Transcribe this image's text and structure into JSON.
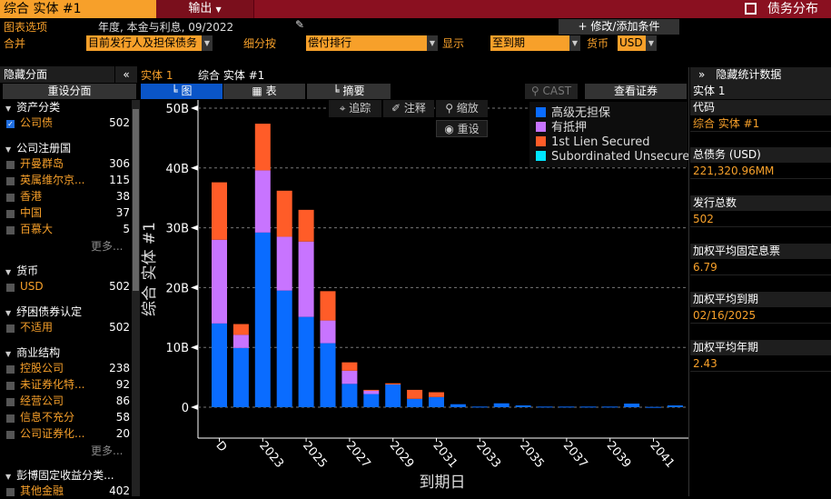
{
  "header": {
    "title": "综合 实体 #1",
    "export_label": "输出",
    "app_title": "债务分布"
  },
  "options": {
    "chart_options_label": "图表选项",
    "chart_options_value": "年度, 本金与利息, 09/2022",
    "modify_label": "+ 修改/添加条件",
    "merge_label": "合并",
    "merge_value": "目前发行人及担保债务",
    "breakdown_label": "细分按",
    "breakdown_value": "偿付排行",
    "display_label": "显示",
    "display_value": "至到期",
    "currency_label": "货币",
    "currency_value": "USD"
  },
  "left_panel": {
    "hide_label": "隐藏分面",
    "collapse": "«",
    "reset_label": "重设分面",
    "more_label": "更多...",
    "groups": [
      {
        "title": "资产分类",
        "items": [
          {
            "name": "公司债",
            "count": "502",
            "checked": true
          }
        ]
      },
      {
        "title": "公司注册国",
        "items": [
          {
            "name": "开曼群岛",
            "count": "306"
          },
          {
            "name": "英属维尔京...",
            "count": "115"
          },
          {
            "name": "香港",
            "count": "38"
          },
          {
            "name": "中国",
            "count": "37"
          },
          {
            "name": "百慕大",
            "count": "5"
          }
        ],
        "more": true
      },
      {
        "title": "货币",
        "items": [
          {
            "name": "USD",
            "count": "502"
          }
        ]
      },
      {
        "title": "纾困债券认定",
        "items": [
          {
            "name": "不适用",
            "count": "502"
          }
        ]
      },
      {
        "title": "商业结构",
        "items": [
          {
            "name": "控股公司",
            "count": "238"
          },
          {
            "name": "未证券化特...",
            "count": "92"
          },
          {
            "name": "经营公司",
            "count": "86"
          },
          {
            "name": "信息不充分",
            "count": "58"
          },
          {
            "name": "公司证券化...",
            "count": "20"
          }
        ],
        "more": true
      },
      {
        "title": "彭博固定收益分类...",
        "items": [
          {
            "name": "其他金融",
            "count": "402"
          }
        ]
      }
    ]
  },
  "center": {
    "entity_tab": "实体 1",
    "entity_name": "综合 实体 #1",
    "tabs": [
      "图",
      "表",
      "摘要"
    ],
    "cast_label": "CAST",
    "view_securities": "查看证券",
    "tools": {
      "track": "追踪",
      "annotate": "注释",
      "zoom": "缩放",
      "reset": "重设"
    }
  },
  "chart_data": {
    "type": "bar",
    "stacked": true,
    "categories": [
      "D",
      "2022",
      "2023",
      "2024",
      "2025",
      "2026",
      "2027",
      "2028",
      "2029",
      "2030",
      "2031",
      "2032",
      "2033",
      "2034",
      "2035",
      "2036",
      "2037",
      "2038",
      "2039",
      "2040",
      "2041",
      "2042"
    ],
    "tick_labels": [
      "D",
      "2023",
      "2025",
      "2027",
      "2029",
      "2031",
      "2033",
      "2035",
      "2037",
      "2039",
      "2041"
    ],
    "y_ticks": [
      "0",
      "10B",
      "20B",
      "30B",
      "40B",
      "50B"
    ],
    "ylim": [
      -5,
      50
    ],
    "ylabel": "综合 实体 #1",
    "xlabel": "到期日",
    "grid": true,
    "legend": "top-right",
    "series": [
      {
        "name": "高级无担保",
        "color": "#0a6cff",
        "values": [
          14.0,
          9.9,
          29.2,
          19.5,
          15.1,
          10.7,
          3.9,
          2.2,
          3.8,
          1.4,
          1.7,
          0.5,
          0.1,
          0.65,
          0.3,
          0.1,
          0.1,
          0.1,
          0.1,
          0.6,
          0.05,
          0.3
        ]
      },
      {
        "name": "有抵押",
        "color": "#c874ff",
        "values": [
          14.0,
          2.2,
          10.4,
          9.0,
          12.6,
          3.8,
          2.2,
          0.6,
          0,
          0,
          0,
          0,
          0,
          0,
          0,
          0,
          0,
          0,
          0,
          0,
          0,
          0
        ]
      },
      {
        "name": "1st Lien Secured",
        "color": "#ff5c28",
        "values": [
          9.6,
          1.8,
          7.8,
          7.7,
          5.3,
          4.9,
          1.4,
          0.1,
          0.2,
          1.5,
          0.8,
          0,
          0,
          0,
          0,
          0,
          0,
          0,
          0,
          0,
          0,
          0
        ]
      },
      {
        "name": "Subordinated Unsecured",
        "color": "#00e5ff",
        "values": [
          0,
          0,
          0,
          0,
          0,
          0,
          0,
          0,
          0,
          0,
          0,
          0,
          0,
          0,
          0,
          0,
          0,
          0,
          0,
          0,
          0,
          0
        ]
      }
    ]
  },
  "right_panel": {
    "hide_label": "隐藏统计数据",
    "expand": "»",
    "entity": "实体 1",
    "code_label": "代码",
    "code_value": "综合 实体 #1",
    "stats": [
      {
        "label": "总债务 (USD)",
        "value": "221,320.96MM"
      },
      {
        "label": "发行总数",
        "value": "502"
      },
      {
        "label": "加权平均固定息票",
        "value": "6.79"
      },
      {
        "label": "加权平均到期",
        "value": "02/16/2025"
      },
      {
        "label": "加权平均年期",
        "value": "2.43"
      }
    ]
  }
}
